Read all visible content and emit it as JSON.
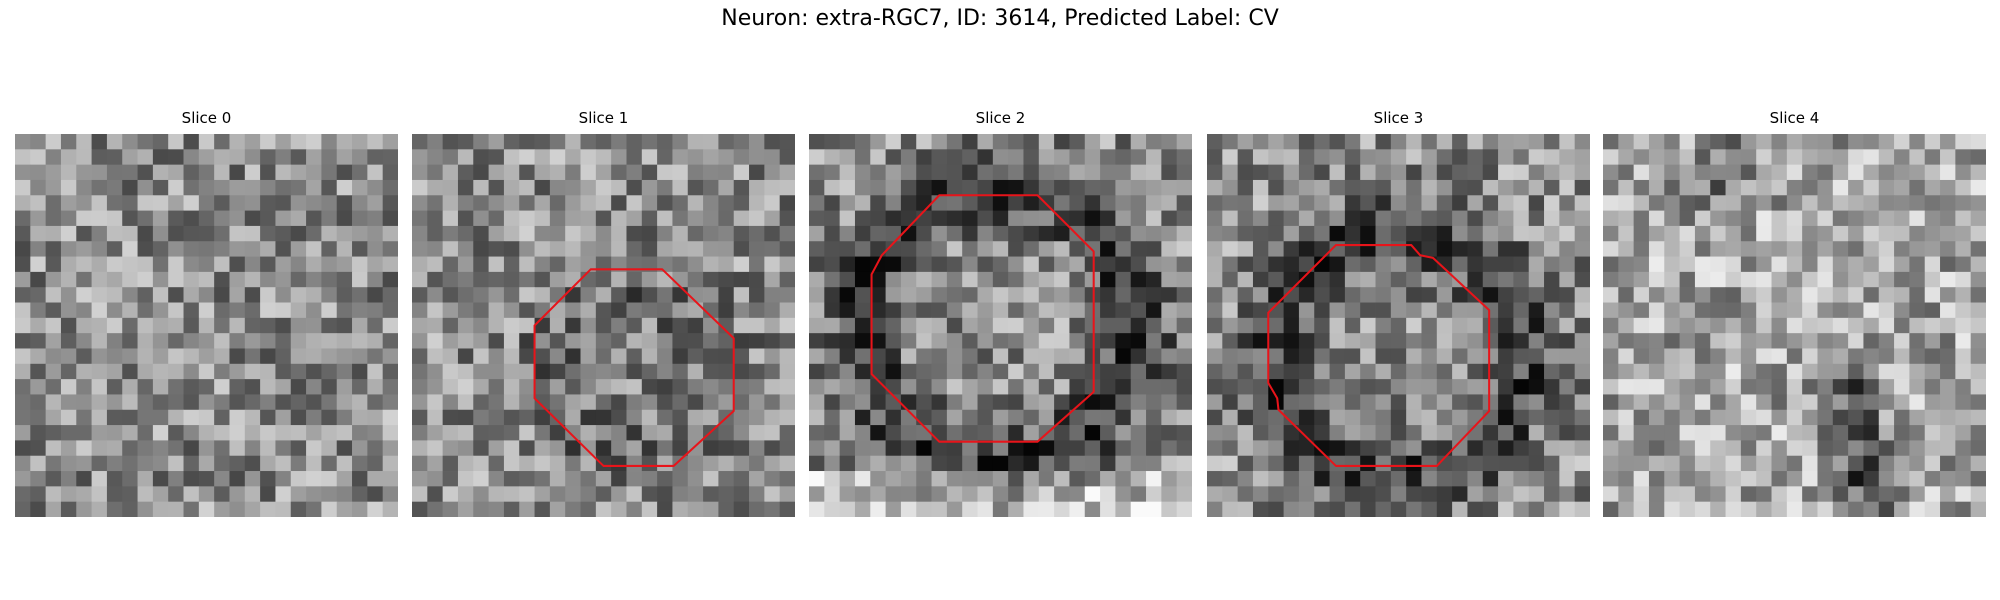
{
  "title": "Neuron: extra-RGC7, ID: 3614, Predicted Label: CV",
  "panels": [
    {
      "title": "Slice 0"
    },
    {
      "title": "Slice 1"
    },
    {
      "title": "Slice 2"
    },
    {
      "title": "Slice 3"
    },
    {
      "title": "Slice 4"
    }
  ]
}
